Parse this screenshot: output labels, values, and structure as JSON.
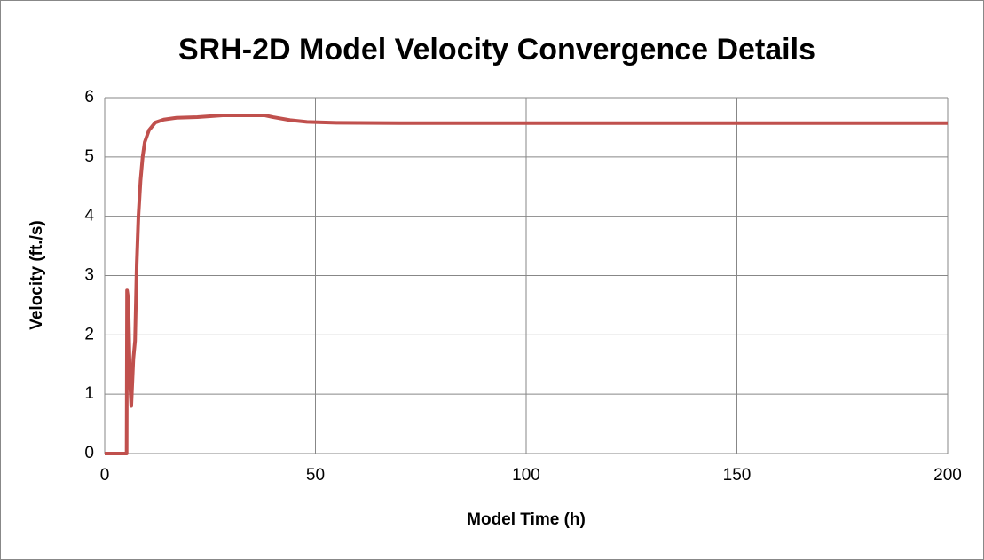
{
  "chart_data": {
    "type": "line",
    "title": "SRH-2D Model Velocity Convergence Details",
    "x_label": "Model Time (h)",
    "y_label": "Velocity (ft./s)",
    "x": [
      0,
      5.2,
      5.3,
      5.6,
      6.0,
      6.3,
      6.8,
      7.2,
      7.6,
      8.0,
      8.5,
      9.0,
      9.5,
      10.5,
      12,
      14,
      17,
      22,
      28,
      33,
      38,
      40,
      44,
      48,
      55,
      70,
      100,
      150,
      200
    ],
    "series": [
      {
        "name": "Velocity",
        "color": "#c0504d",
        "values": [
          0,
          0,
          2.75,
          2.6,
          1.2,
          0.8,
          1.6,
          1.9,
          3.2,
          4.0,
          4.6,
          5.0,
          5.25,
          5.45,
          5.58,
          5.63,
          5.66,
          5.67,
          5.7,
          5.7,
          5.7,
          5.67,
          5.62,
          5.59,
          5.575,
          5.57,
          5.57,
          5.57,
          5.57
        ]
      }
    ],
    "xlim": [
      0,
      200
    ],
    "xticks": [
      0,
      50,
      100,
      150,
      200
    ],
    "ylim": [
      0,
      6
    ],
    "yticks": [
      0,
      1,
      2,
      3,
      4,
      5,
      6
    ],
    "grid": true
  }
}
